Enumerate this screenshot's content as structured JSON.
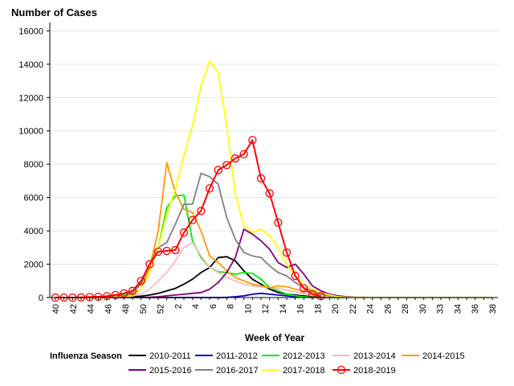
{
  "chart_data": {
    "type": "line",
    "ylabel": "Number of Cases",
    "xlabel": "Week of Year",
    "legend_title": "Influenza Season",
    "legend_position": "bottom",
    "grid": "horizontal",
    "ylim": [
      0,
      16500
    ],
    "y_ticks": [
      0,
      2000,
      4000,
      6000,
      8000,
      10000,
      12000,
      14000,
      16000
    ],
    "x_ticks": [
      "40",
      "42",
      "44",
      "46",
      "48",
      "50",
      "52",
      "2",
      "4",
      "6",
      "8",
      "10",
      "12",
      "14",
      "16",
      "18",
      "20",
      "22",
      "24",
      "26",
      "28",
      "30",
      "33",
      "34",
      "36",
      "38"
    ],
    "x_weeks": [
      "40",
      "41",
      "42",
      "43",
      "44",
      "45",
      "46",
      "47",
      "48",
      "49",
      "50",
      "51",
      "52",
      "1",
      "2",
      "3",
      "4",
      "5",
      "6",
      "7",
      "8",
      "9",
      "10",
      "11",
      "12",
      "13",
      "14",
      "15",
      "16",
      "17",
      "18",
      "19",
      "20",
      "21",
      "22",
      "23",
      "24",
      "25",
      "26",
      "27",
      "28",
      "29",
      "30",
      "31",
      "32",
      "33",
      "34",
      "35",
      "36",
      "37",
      "38",
      "39"
    ],
    "series": [
      {
        "name": "2010-2011",
        "color": "#000000",
        "marker": "none",
        "values": [
          0,
          0,
          0,
          0,
          0,
          0,
          0,
          10,
          20,
          40,
          80,
          150,
          250,
          400,
          550,
          800,
          1100,
          1500,
          1800,
          2400,
          2450,
          2200,
          1600,
          1100,
          800,
          500,
          300,
          200,
          150,
          100,
          50,
          30,
          20,
          10,
          5,
          0,
          0,
          0,
          0,
          0,
          0,
          0,
          0,
          0,
          0,
          0,
          0,
          0,
          0,
          0,
          0,
          0
        ]
      },
      {
        "name": "2011-2012",
        "color": "#0000cc",
        "marker": "none",
        "values": [
          0,
          0,
          0,
          0,
          0,
          0,
          0,
          0,
          0,
          0,
          0,
          0,
          0,
          0,
          0,
          0,
          0,
          0,
          0,
          0,
          10,
          50,
          100,
          200,
          250,
          200,
          150,
          100,
          60,
          30,
          10,
          0,
          0,
          0,
          0,
          0,
          0,
          0,
          0,
          0,
          0,
          0,
          0,
          0,
          0,
          0,
          0,
          0,
          0,
          0,
          0,
          0
        ]
      },
      {
        "name": "2012-2013",
        "color": "#00ee00",
        "marker": "none",
        "values": [
          0,
          0,
          0,
          0,
          10,
          20,
          50,
          100,
          200,
          400,
          900,
          2000,
          3000,
          5400,
          6100,
          6150,
          3400,
          2400,
          1800,
          1550,
          1500,
          1400,
          1500,
          1450,
          1100,
          600,
          400,
          200,
          100,
          50,
          20,
          10,
          0,
          0,
          0,
          0,
          0,
          0,
          0,
          0,
          0,
          0,
          0,
          0,
          0,
          0,
          0,
          0,
          0,
          0,
          0,
          0
        ]
      },
      {
        "name": "2013-2014",
        "color": "#ffb6c1",
        "marker": "none",
        "values": [
          0,
          0,
          0,
          0,
          0,
          0,
          0,
          20,
          50,
          100,
          200,
          500,
          1000,
          1500,
          2200,
          3000,
          3300,
          2500,
          1800,
          1500,
          1200,
          1000,
          800,
          700,
          650,
          600,
          550,
          450,
          350,
          250,
          150,
          100,
          50,
          30,
          10,
          0,
          0,
          0,
          0,
          0,
          0,
          0,
          0,
          0,
          0,
          0,
          0,
          0,
          0,
          0,
          0,
          0
        ]
      },
      {
        "name": "2014-2015",
        "color": "#ff9900",
        "marker": "none",
        "values": [
          0,
          0,
          0,
          0,
          0,
          0,
          0,
          50,
          100,
          200,
          500,
          1800,
          4000,
          8100,
          6300,
          5300,
          5100,
          4000,
          2500,
          2100,
          1600,
          1200,
          1000,
          800,
          700,
          600,
          700,
          650,
          500,
          400,
          300,
          200,
          100,
          50,
          20,
          10,
          0,
          0,
          0,
          0,
          0,
          0,
          0,
          0,
          0,
          0,
          0,
          0,
          0,
          0,
          0,
          0
        ]
      },
      {
        "name": "2015-2016",
        "color": "#800080",
        "marker": "none",
        "values": [
          0,
          0,
          0,
          0,
          0,
          0,
          0,
          0,
          0,
          0,
          0,
          20,
          50,
          100,
          150,
          200,
          250,
          300,
          500,
          900,
          1500,
          2400,
          4100,
          3800,
          3400,
          2900,
          2100,
          1800,
          2000,
          1400,
          700,
          400,
          200,
          100,
          50,
          20,
          10,
          0,
          0,
          0,
          0,
          0,
          0,
          0,
          0,
          0,
          0,
          0,
          0,
          0,
          0,
          0
        ]
      },
      {
        "name": "2016-2017",
        "color": "#808080",
        "marker": "none",
        "values": [
          0,
          0,
          0,
          0,
          0,
          10,
          20,
          50,
          100,
          300,
          800,
          2000,
          3000,
          3300,
          4400,
          5600,
          5600,
          7450,
          7250,
          6800,
          4800,
          3500,
          2700,
          2500,
          2400,
          1900,
          1500,
          1300,
          900,
          600,
          400,
          200,
          100,
          50,
          20,
          10,
          0,
          0,
          0,
          0,
          0,
          0,
          0,
          0,
          0,
          0,
          0,
          0,
          0,
          0,
          0,
          0
        ]
      },
      {
        "name": "2017-2018",
        "color": "#ffff00",
        "marker": "none",
        "values": [
          0,
          0,
          0,
          0,
          0,
          0,
          0,
          20,
          50,
          100,
          500,
          1500,
          3000,
          5000,
          6500,
          8500,
          10300,
          12700,
          14200,
          13500,
          10300,
          6200,
          4300,
          3900,
          4100,
          3700,
          3000,
          2000,
          1300,
          800,
          500,
          300,
          150,
          50,
          20,
          10,
          0,
          0,
          0,
          0,
          0,
          0,
          0,
          0,
          0,
          0,
          0,
          0,
          0,
          0,
          0,
          0
        ]
      },
      {
        "name": "2018-2019",
        "color": "#ff0000",
        "marker": "circle",
        "values": [
          0,
          0,
          0,
          10,
          30,
          50,
          80,
          150,
          250,
          400,
          1000,
          2000,
          2750,
          2800,
          2850,
          3900,
          4650,
          5200,
          6550,
          7650,
          7950,
          8350,
          8600,
          9450,
          7150,
          6250,
          4500,
          2700,
          1300,
          550,
          200,
          80,
          null,
          null,
          null,
          null,
          null,
          null,
          null,
          null,
          null,
          null,
          null,
          null,
          null,
          null,
          null,
          null,
          null,
          null,
          null,
          null
        ]
      }
    ]
  }
}
